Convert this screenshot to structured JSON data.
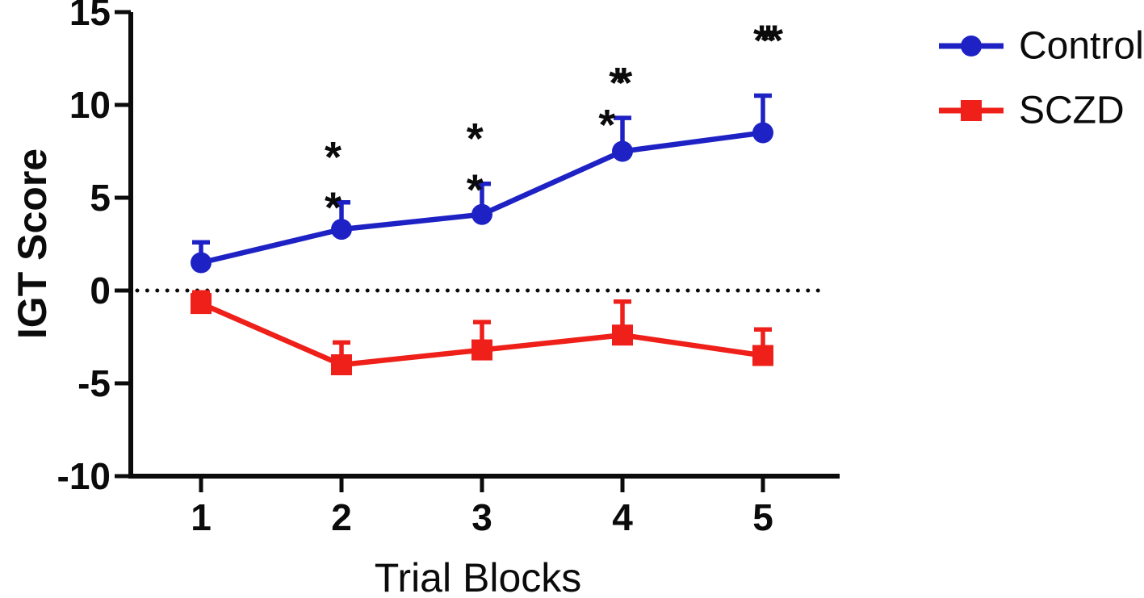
{
  "figure": {
    "background": "#ffffff"
  },
  "chart_data": {
    "type": "line",
    "title": "",
    "xlabel": "Trial Blocks",
    "ylabel": "IGT Score",
    "x": [
      1,
      2,
      3,
      4,
      5
    ],
    "xticks": [
      "1",
      "2",
      "3",
      "4",
      "5"
    ],
    "yticks": [
      15,
      10,
      5,
      0,
      -5,
      -10
    ],
    "xlim": [
      0.5,
      5.5
    ],
    "ylim": [
      -10,
      15
    ],
    "grid": "off",
    "baseline": {
      "y": 0,
      "style": "dotted",
      "color": "#0b0b0b"
    },
    "legend_position": "top-right",
    "colors": {
      "axis": "#0b0b0b",
      "text": "#0b0b0b"
    },
    "series": [
      {
        "name": "Control",
        "color": "#1e22c4",
        "marker": "circle",
        "values": [
          1.5,
          3.3,
          4.1,
          7.5,
          8.5
        ],
        "errors_up": [
          1.1,
          1.45,
          1.65,
          1.8,
          2.0
        ]
      },
      {
        "name": "SCZD",
        "color": "#ee2019",
        "marker": "square",
        "values": [
          -0.7,
          -4.0,
          -3.2,
          -2.4,
          -3.5
        ],
        "errors_up": [
          0.6,
          1.2,
          1.5,
          1.8,
          1.4
        ]
      }
    ],
    "annotations": [
      {
        "text": "*",
        "x": 1.94,
        "y": 7.6
      },
      {
        "text": "*",
        "x": 1.94,
        "y": 4.9
      },
      {
        "text": "*",
        "x": 2.95,
        "y": 8.6
      },
      {
        "text": "*",
        "x": 2.95,
        "y": 5.85
      },
      {
        "text": "**",
        "x": 3.95,
        "y": 11.6
      },
      {
        "text": "*",
        "x": 3.89,
        "y": 9.35
      },
      {
        "text": "***",
        "x": 5.0,
        "y": 13.9
      }
    ]
  }
}
